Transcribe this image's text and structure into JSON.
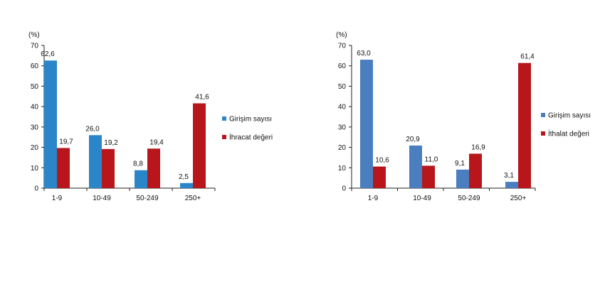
{
  "colors": {
    "axis": "#222222",
    "text": "#111111"
  },
  "chart_data": [
    {
      "type": "bar",
      "ylabel": "(%)",
      "ylim": [
        0,
        70
      ],
      "yticks": [
        0,
        10,
        20,
        30,
        40,
        50,
        60,
        70
      ],
      "categories": [
        "1-9",
        "10-49",
        "50-249",
        "250+"
      ],
      "series": [
        {
          "name": "Girişim sayısı",
          "color": "#2a86c8",
          "values": [
            62.6,
            26.0,
            8.8,
            2.5
          ],
          "labels": [
            "62,6",
            "26,0",
            "8,8",
            "2,5"
          ]
        },
        {
          "name": "İhracat değeri",
          "color": "#b8161b",
          "values": [
            19.7,
            19.2,
            19.4,
            41.6
          ],
          "labels": [
            "19,7",
            "19,2",
            "19,4",
            "41,6"
          ]
        }
      ],
      "legend_position": "right",
      "grid": false
    },
    {
      "type": "bar",
      "ylabel": "(%)",
      "ylim": [
        0,
        70
      ],
      "yticks": [
        0,
        10,
        20,
        30,
        40,
        50,
        60,
        70
      ],
      "categories": [
        "1-9",
        "10-49",
        "50-249",
        "250+"
      ],
      "series": [
        {
          "name": "Girişim sayısı",
          "color": "#4a7ebf",
          "values": [
            63.0,
            20.9,
            9.1,
            3.1
          ],
          "labels": [
            "63,0",
            "20,9",
            "9,1",
            "3,1"
          ]
        },
        {
          "name": "İthalat değeri",
          "color": "#b8161b",
          "values": [
            10.6,
            11.0,
            16.9,
            61.4
          ],
          "labels": [
            "10,6",
            "11,0",
            "16,9",
            "61,4"
          ]
        }
      ],
      "legend_position": "right",
      "grid": false
    }
  ]
}
